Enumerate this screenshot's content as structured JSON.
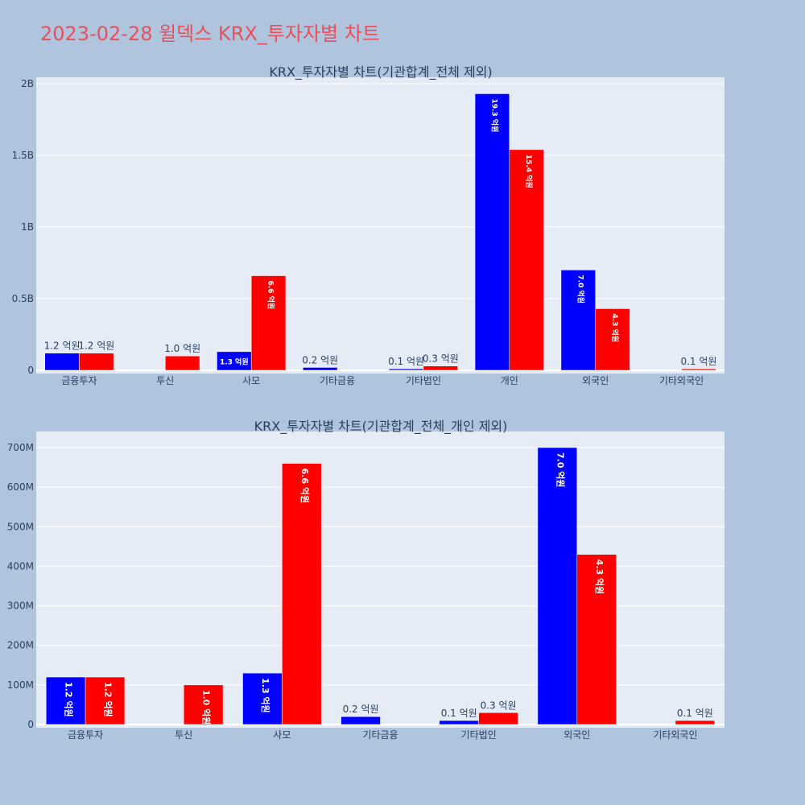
{
  "page": {
    "title": "2023-02-28 윌덱스 KRX_투자자별 차트"
  },
  "colors": {
    "buy": "#0000ff",
    "sell": "#ff0000",
    "plot_bg": "#e5ecf6",
    "page_bg": "#b0c4de",
    "title": "#e8505b"
  },
  "chart_data": [
    {
      "type": "bar",
      "title": "KRX_투자자별 차트(기관합계_전체 제외)",
      "categories": [
        "금융투자",
        "투신",
        "사모",
        "기타금융",
        "기타법인",
        "개인",
        "외국인",
        "기타외국인"
      ],
      "series": [
        {
          "values": [
            120000000,
            0,
            130000000,
            20000000,
            10000000,
            1930000000,
            700000000,
            0
          ],
          "labels": [
            "1.2 억원",
            "",
            "1.3 억원",
            "0.2 억원",
            "0.1 억원",
            "19.3 억원",
            "7.0 억원",
            ""
          ]
        },
        {
          "values": [
            120000000,
            100000000,
            660000000,
            0,
            30000000,
            1540000000,
            430000000,
            10000000
          ],
          "labels": [
            "1.2 억원",
            "1.0 억원",
            "6.6 억원",
            "",
            "0.3 억원",
            "15.4 억원",
            "4.3 억원",
            "0.1 억원"
          ]
        }
      ],
      "ylim": [
        0,
        2000000000
      ],
      "yticks": [
        0,
        500000000,
        1000000000,
        1500000000,
        2000000000
      ],
      "ytick_labels": [
        "0",
        "0.5B",
        "1B",
        "1.5B",
        "2B"
      ],
      "grid": true
    },
    {
      "type": "bar",
      "title": "KRX_투자자별 차트(기관합계_전체_개인 제외)",
      "categories": [
        "금융투자",
        "투신",
        "사모",
        "기타금융",
        "기타법인",
        "외국인",
        "기타외국인"
      ],
      "series": [
        {
          "values": [
            120000000,
            0,
            130000000,
            20000000,
            10000000,
            700000000,
            0
          ],
          "labels": [
            "1.2 억원",
            "",
            "1.3 억원",
            "0.2 억원",
            "0.1 억원",
            "7.0 억원",
            ""
          ]
        },
        {
          "values": [
            120000000,
            100000000,
            660000000,
            0,
            30000000,
            430000000,
            10000000
          ],
          "labels": [
            "1.2 억원",
            "1.0 억원",
            "6.6 억원",
            "",
            "0.3 억원",
            "4.3 억원",
            "0.1 억원"
          ]
        }
      ],
      "ylim": [
        0,
        700000000
      ],
      "yticks": [
        0,
        100000000,
        200000000,
        300000000,
        400000000,
        500000000,
        600000000,
        700000000
      ],
      "ytick_labels": [
        "0",
        "100M",
        "200M",
        "300M",
        "400M",
        "500M",
        "600M",
        "700M"
      ],
      "grid": true
    }
  ]
}
